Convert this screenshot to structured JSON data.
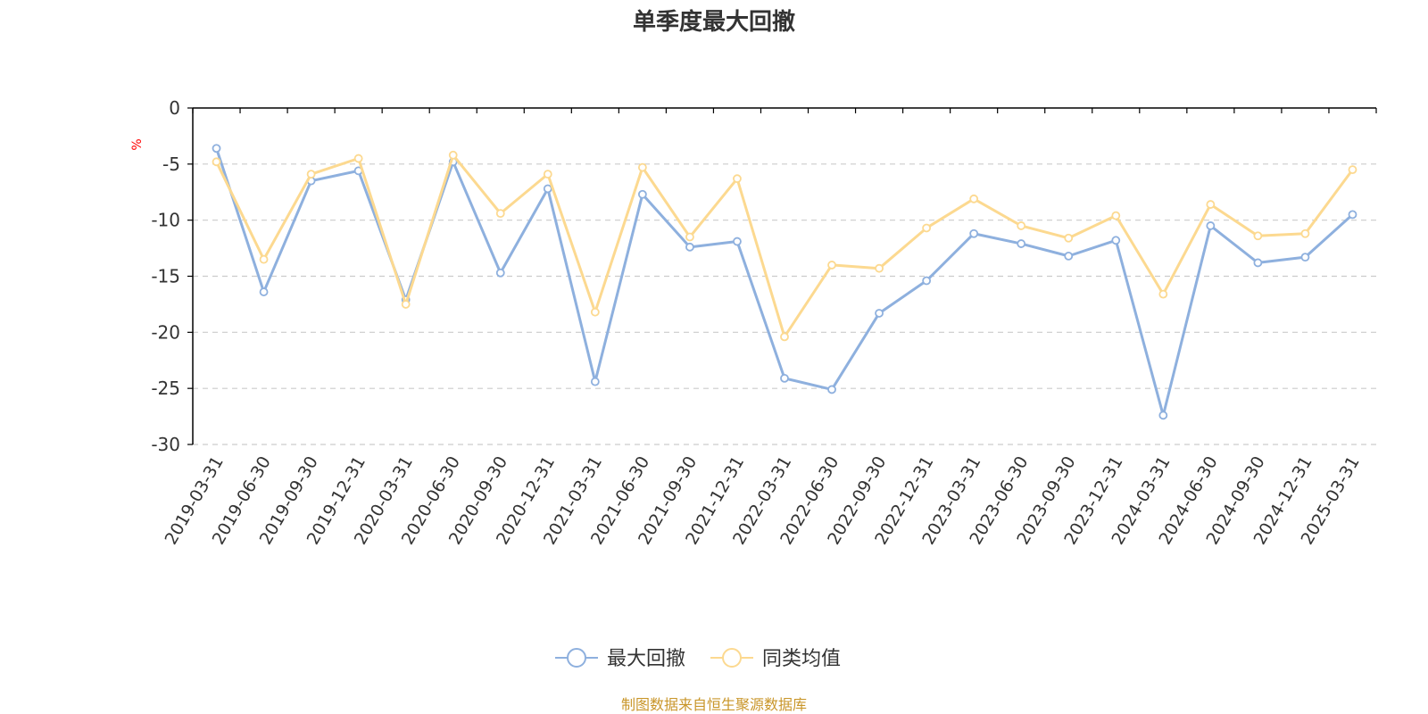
{
  "colors": {
    "series1": "#8eb0de",
    "series2": "#fcd990",
    "source": "#c9962a",
    "unit": "#ff0000",
    "grid": "#cccccc",
    "axis": "#000000"
  },
  "footer": {
    "source": "制图数据来自恒生聚源数据库"
  },
  "chart_data": {
    "type": "line",
    "title": "单季度最大回撤",
    "ylabel": "%",
    "xlabel": "",
    "ylim": [
      -30,
      0
    ],
    "yticks": [
      0,
      -5,
      -10,
      -15,
      -20,
      -25,
      -30
    ],
    "grid": "horizontal-dashed",
    "legend_position": "bottom-center",
    "categories": [
      "2019-03-31",
      "2019-06-30",
      "2019-09-30",
      "2019-12-31",
      "2020-03-31",
      "2020-06-30",
      "2020-09-30",
      "2020-12-31",
      "2021-03-31",
      "2021-06-30",
      "2021-09-30",
      "2021-12-31",
      "2022-03-31",
      "2022-06-30",
      "2022-09-30",
      "2022-12-31",
      "2023-03-31",
      "2023-06-30",
      "2023-09-30",
      "2023-12-31",
      "2024-03-31",
      "2024-06-30",
      "2024-09-30",
      "2024-12-31",
      "2025-03-31"
    ],
    "series": [
      {
        "name": "最大回撤",
        "values": [
          -3.6,
          -16.4,
          -6.5,
          -5.6,
          -17.1,
          -4.8,
          -14.7,
          -7.2,
          -24.4,
          -7.7,
          -12.4,
          -11.9,
          -24.1,
          -25.1,
          -18.3,
          -15.4,
          -11.2,
          -12.1,
          -13.2,
          -11.8,
          -27.4,
          -10.5,
          -13.8,
          -13.3,
          -9.5
        ]
      },
      {
        "name": "同类均值",
        "values": [
          -4.8,
          -13.5,
          -5.9,
          -4.5,
          -17.5,
          -4.2,
          -9.4,
          -5.9,
          -18.2,
          -5.3,
          -11.5,
          -6.3,
          -20.4,
          -14.0,
          -14.3,
          -10.7,
          -8.1,
          -10.5,
          -11.6,
          -9.6,
          -16.6,
          -8.6,
          -11.4,
          -11.2,
          -5.5
        ]
      }
    ]
  }
}
